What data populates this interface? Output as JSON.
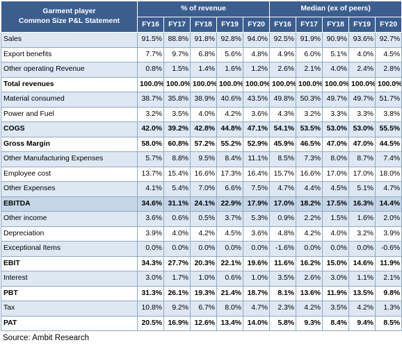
{
  "header": {
    "title_line1": "Garment player",
    "title_line2": "Common Size P&L Statement",
    "group_left": "% of revenue",
    "group_right": "Median (ex of peers)",
    "years_left": [
      "FY16",
      "FY17",
      "FY18",
      "FY19",
      "FY20"
    ],
    "years_right": [
      "FY16",
      "FY17",
      "FY18",
      "FY19",
      "FY20"
    ]
  },
  "rows": [
    {
      "label": "Sales",
      "style": "shade",
      "values": [
        "91.5%",
        "88.8%",
        "91.8%",
        "92.8%",
        "94.0%",
        "92.5%",
        "91.9%",
        "90.9%",
        "93.6%",
        "92.7%"
      ]
    },
    {
      "label": "Export benefits",
      "style": "plain",
      "values": [
        "7.7%",
        "9.7%",
        "6.8%",
        "5.6%",
        "4.8%",
        "4.9%",
        "6.0%",
        "5.1%",
        "4.0%",
        "4.5%"
      ]
    },
    {
      "label": "Other operating Revenue",
      "style": "shade",
      "values": [
        "0.8%",
        "1.5%",
        "1.4%",
        "1.6%",
        "1.2%",
        "2.6%",
        "2.1%",
        "4.0%",
        "2.4%",
        "2.8%"
      ]
    },
    {
      "label": "Total revenues",
      "style": "bold",
      "values": [
        "100.0%",
        "100.0%",
        "100.0%",
        "100.0%",
        "100.0%",
        "100.0%",
        "100.0%",
        "100.0%",
        "100.0%",
        "100.0%"
      ]
    },
    {
      "label": "Material consumed",
      "style": "shade",
      "values": [
        "38.7%",
        "35.8%",
        "38.9%",
        "40.6%",
        "43.5%",
        "49.8%",
        "50.3%",
        "49.7%",
        "49.7%",
        "51.7%"
      ]
    },
    {
      "label": "Power and Fuel",
      "style": "plain",
      "values": [
        "3.2%",
        "3.5%",
        "4.0%",
        "4.2%",
        "3.6%",
        "4.3%",
        "3.2%",
        "3.3%",
        "3.3%",
        "3.8%"
      ]
    },
    {
      "label": "COGS",
      "style": "shade bold",
      "values": [
        "42.0%",
        "39.2%",
        "42.8%",
        "44.8%",
        "47.1%",
        "54.1%",
        "53.5%",
        "53.0%",
        "53.0%",
        "55.5%"
      ]
    },
    {
      "label": "Gross Margin",
      "style": "bold",
      "values": [
        "58.0%",
        "60.8%",
        "57.2%",
        "55.2%",
        "52.9%",
        "45.9%",
        "46.5%",
        "47.0%",
        "47.0%",
        "44.5%"
      ]
    },
    {
      "label": "Other Manufacturing Expenses",
      "style": "shade",
      "values": [
        "5.7%",
        "8.8%",
        "9.5%",
        "8.4%",
        "11.1%",
        "8.5%",
        "7.3%",
        "8.0%",
        "8.7%",
        "7.4%"
      ]
    },
    {
      "label": "Employee cost",
      "style": "plain",
      "values": [
        "13.7%",
        "15.4%",
        "16.6%",
        "17.3%",
        "16.4%",
        "15.7%",
        "16.6%",
        "17.0%",
        "17.0%",
        "18.0%"
      ]
    },
    {
      "label": "Other Expenses",
      "style": "shade",
      "values": [
        "4.1%",
        "5.4%",
        "7.0%",
        "6.6%",
        "7.5%",
        "4.7%",
        "4.4%",
        "4.5%",
        "5.1%",
        "4.7%"
      ]
    },
    {
      "label": "EBITDA",
      "style": "shade-dark bold top-thick",
      "values": [
        "34.6%",
        "31.1%",
        "24.1%",
        "22.9%",
        "17.9%",
        "17.0%",
        "18.2%",
        "17.5%",
        "16.3%",
        "14.4%"
      ]
    },
    {
      "label": "Other income",
      "style": "shade",
      "values": [
        "3.6%",
        "0.6%",
        "0.5%",
        "3.7%",
        "5.3%",
        "0.9%",
        "2.2%",
        "1.5%",
        "1.6%",
        "2.0%"
      ]
    },
    {
      "label": "Depreciation",
      "style": "plain",
      "values": [
        "3.9%",
        "4.0%",
        "4.2%",
        "4.5%",
        "3.6%",
        "4.8%",
        "4.2%",
        "4.0%",
        "3.2%",
        "3.9%"
      ]
    },
    {
      "label": "Exceptional Items",
      "style": "shade",
      "values": [
        "0.0%",
        "0.0%",
        "0.0%",
        "0.0%",
        "0.0%",
        "-1.6%",
        "0.0%",
        "0.0%",
        "0.0%",
        "-0.6%"
      ]
    },
    {
      "label": "EBIT",
      "style": "bold",
      "values": [
        "34.3%",
        "27.7%",
        "20.3%",
        "22.1%",
        "19.6%",
        "11.6%",
        "16.2%",
        "15.0%",
        "14.6%",
        "11.9%"
      ]
    },
    {
      "label": "Interest",
      "style": "shade",
      "values": [
        "3.0%",
        "1.7%",
        "1.0%",
        "0.6%",
        "1.0%",
        "3.5%",
        "2.6%",
        "3.0%",
        "1.1%",
        "2.1%"
      ]
    },
    {
      "label": "PBT",
      "style": "bold",
      "values": [
        "31.3%",
        "26.1%",
        "19.3%",
        "21.4%",
        "18.7%",
        "8.1%",
        "13.6%",
        "11.9%",
        "13.5%",
        "9.8%"
      ]
    },
    {
      "label": "Tax",
      "style": "shade",
      "values": [
        "10.8%",
        "9.2%",
        "6.7%",
        "8.0%",
        "4.7%",
        "2.3%",
        "4.2%",
        "3.5%",
        "4.2%",
        "1.3%"
      ]
    },
    {
      "label": "PAT",
      "style": "bold",
      "values": [
        "20.5%",
        "16.9%",
        "12.6%",
        "13.4%",
        "14.0%",
        "5.8%",
        "9.3%",
        "8.4%",
        "9.4%",
        "8.5%"
      ]
    }
  ],
  "footer": {
    "source": "Source: Ambit Research"
  }
}
